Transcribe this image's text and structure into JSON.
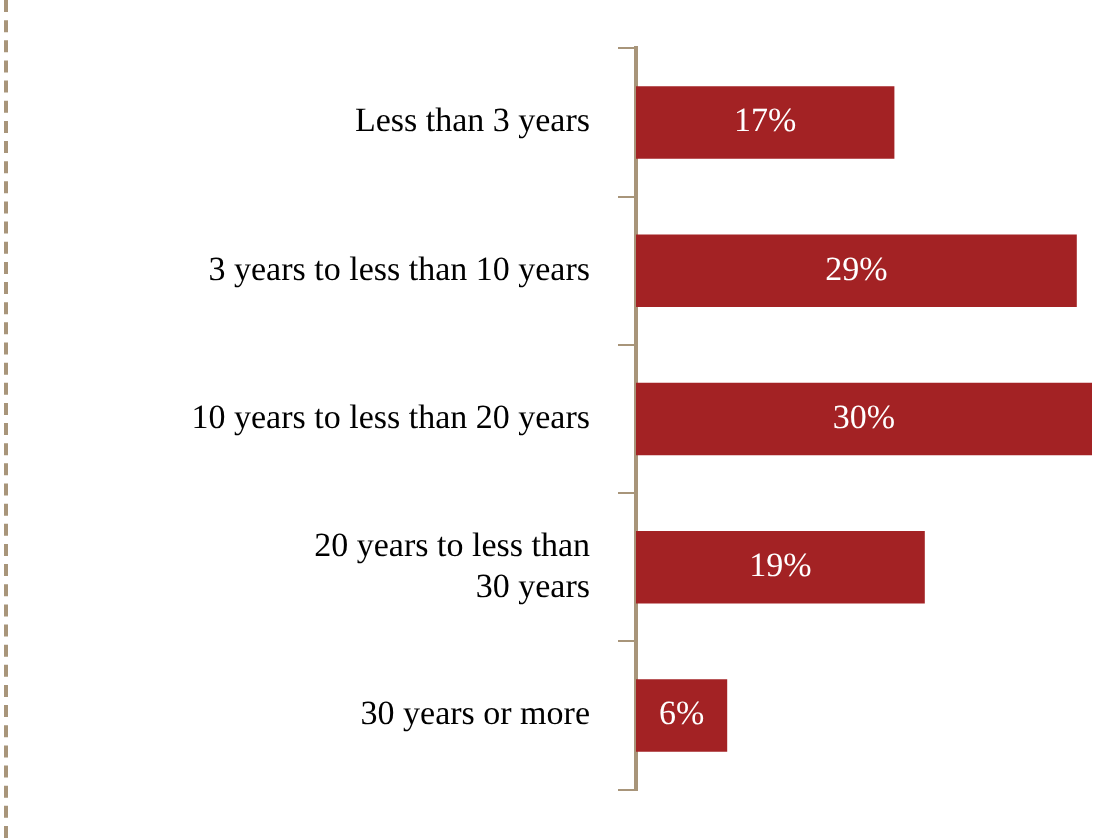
{
  "chart_data": {
    "type": "bar",
    "orientation": "horizontal",
    "categories": [
      "Less than 3 years",
      "3 years to less than 10 years",
      "10 years to less than 20 years",
      "20 years to less than\n30 years",
      "30 years or more"
    ],
    "values": [
      17,
      29,
      30,
      19,
      6
    ],
    "value_labels": [
      "17%",
      "29%",
      "30%",
      "19%",
      "6%"
    ],
    "color": "#a32224",
    "xlim": [
      0,
      30
    ],
    "tick_labels": "y",
    "grid": false,
    "legend": false
  }
}
